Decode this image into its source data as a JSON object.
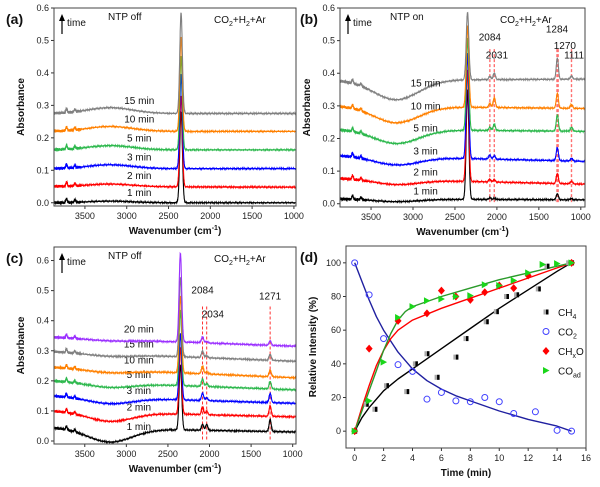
{
  "chart_data": [
    {
      "panel": "(a)",
      "type": "line",
      "condition": "NTP off",
      "gas": [
        "CO",
        "2",
        "+H",
        "2",
        "+Ar"
      ],
      "arrow_label": "time",
      "xlabel": "Wavenumber (cm",
      "xlabel_sup": "-1",
      "xlabel_end": ")",
      "ylabel": "Absorbance",
      "xlim": [
        3870,
        975
      ],
      "ylim": [
        -0.01,
        0.6
      ],
      "xticks": [
        3500,
        3000,
        2500,
        2000,
        1500,
        1000
      ],
      "yticks": [
        0.0,
        0.1,
        0.2,
        0.3,
        0.4,
        0.5,
        0.6
      ],
      "dashed_lines": [],
      "annotations": [],
      "series": [
        {
          "name": "1 min",
          "color": "#000000",
          "baseline_left": 0.0,
          "baseline_right": 0.0,
          "hump": 0.005,
          "peak_2350": 0.28,
          "minor_peaks": []
        },
        {
          "name": "2 min",
          "color": "#ff0000",
          "baseline_left": 0.05,
          "baseline_right": 0.048,
          "hump": 0.008,
          "peak_2350": 0.33,
          "minor_peaks": []
        },
        {
          "name": "3 min",
          "color": "#0000ff",
          "baseline_left": 0.105,
          "baseline_right": 0.105,
          "hump": 0.012,
          "peak_2350": 0.395,
          "minor_peaks": []
        },
        {
          "name": "5 min",
          "color": "#2db84d",
          "baseline_left": 0.163,
          "baseline_right": 0.163,
          "hump": 0.013,
          "peak_2350": 0.45,
          "minor_peaks": []
        },
        {
          "name": "10 min",
          "color": "#ff8000",
          "baseline_left": 0.22,
          "baseline_right": 0.22,
          "hump": 0.015,
          "peak_2350": 0.51,
          "minor_peaks": []
        },
        {
          "name": "15 min",
          "color": "#808080",
          "baseline_left": 0.275,
          "baseline_right": 0.275,
          "hump": 0.018,
          "peak_2350": 0.585,
          "minor_peaks": []
        }
      ]
    },
    {
      "panel": "(b)",
      "type": "line",
      "condition": "NTP on",
      "gas": [
        "CO",
        "2",
        "+H",
        "2",
        "+Ar"
      ],
      "arrow_label": "time",
      "xlabel": "Wavenumber (cm",
      "xlabel_sup": "-1",
      "xlabel_end": ")",
      "ylabel": "Absorbance",
      "xlim": [
        3870,
        950
      ],
      "ylim": [
        -0.01,
        0.6
      ],
      "xticks": [
        3500,
        3000,
        2500,
        2000,
        1500,
        1000
      ],
      "yticks": [
        0.0,
        0.1,
        0.2,
        0.3,
        0.4,
        0.5,
        0.6
      ],
      "dashed_lines": [
        2084,
        2031,
        1284,
        1270,
        1111
      ],
      "annotations": [
        {
          "text": "2084",
          "x": 2084,
          "y": 0.5
        },
        {
          "text": "2031",
          "x": 2000,
          "y": 0.445
        },
        {
          "text": "1284",
          "x": 1284,
          "y": 0.525
        },
        {
          "text": "1270",
          "x": 1190,
          "y": 0.475
        },
        {
          "text": "1111",
          "x": 1080,
          "y": 0.445
        }
      ],
      "series": [
        {
          "name": "1 min",
          "color": "#000000",
          "baseline_left": 0.015,
          "baseline_right": 0.012,
          "hump": -0.008,
          "peak_2350": 0.35,
          "minor_peaks": [
            [
              2084,
              0.005
            ],
            [
              2031,
              0.004
            ],
            [
              1280,
              0.018
            ],
            [
              1111,
              0.004
            ]
          ]
        },
        {
          "name": "2 min",
          "color": "#ff0000",
          "baseline_left": 0.078,
          "baseline_right": 0.06,
          "hump": -0.015,
          "peak_2350": 0.42,
          "minor_peaks": [
            [
              2084,
              0.008
            ],
            [
              2031,
              0.006
            ],
            [
              1280,
              0.03
            ],
            [
              1111,
              0.008
            ]
          ]
        },
        {
          "name": "3 min",
          "color": "#0000ff",
          "baseline_left": 0.148,
          "baseline_right": 0.13,
          "hump": -0.025,
          "peak_2350": 0.47,
          "minor_peaks": [
            [
              2084,
              0.012
            ],
            [
              2031,
              0.01
            ],
            [
              1280,
              0.04
            ],
            [
              1111,
              0.008
            ]
          ]
        },
        {
          "name": "5 min",
          "color": "#2db84d",
          "baseline_left": 0.228,
          "baseline_right": 0.222,
          "hump": -0.042,
          "peak_2350": 0.51,
          "minor_peaks": [
            [
              2084,
              0.01
            ],
            [
              2031,
              0.02
            ],
            [
              1280,
              0.05
            ],
            [
              1111,
              0.012
            ]
          ]
        },
        {
          "name": "10 min",
          "color": "#ff8000",
          "baseline_left": 0.3,
          "baseline_right": 0.292,
          "hump": -0.05,
          "peak_2350": 0.55,
          "minor_peaks": [
            [
              2084,
              0.012
            ],
            [
              2031,
              0.03
            ],
            [
              1280,
              0.045
            ],
            [
              1111,
              0.012
            ]
          ]
        },
        {
          "name": "15 min",
          "color": "#808080",
          "baseline_left": 0.378,
          "baseline_right": 0.382,
          "hump": -0.06,
          "peak_2350": 0.585,
          "minor_peaks": [
            [
              2084,
              0.01
            ],
            [
              2031,
              0.02
            ],
            [
              1280,
              0.065
            ],
            [
              1111,
              0.01
            ]
          ]
        }
      ]
    },
    {
      "panel": "(c)",
      "type": "line",
      "condition": "NTP off",
      "gas": [
        "CO",
        "2",
        "+H",
        "2",
        "+Ar"
      ],
      "arrow_label": "time",
      "xlabel": "Wavenumber (cm",
      "xlabel_sup": "-1",
      "xlabel_end": ")",
      "ylabel": "Absorbance",
      "xlim": [
        3870,
        960
      ],
      "ylim": [
        -0.01,
        0.645
      ],
      "xticks": [
        3500,
        3000,
        2500,
        2000,
        1500,
        1000
      ],
      "yticks": [
        0.0,
        0.1,
        0.2,
        0.3,
        0.4,
        0.5,
        0.6
      ],
      "dashed_lines": [
        2084,
        2034,
        1271
      ],
      "annotations": [
        {
          "text": "2084",
          "x": 2084,
          "y": 0.49
        },
        {
          "text": "2034",
          "x": 1960,
          "y": 0.41
        },
        {
          "text": "1271",
          "x": 1271,
          "y": 0.47
        }
      ],
      "series": [
        {
          "name": "1 min",
          "color": "#000000",
          "baseline_left": 0.045,
          "baseline_right": 0.03,
          "hump": -0.045,
          "peak_2350": 0.26,
          "minor_peaks": [
            [
              2084,
              0.02
            ],
            [
              2034,
              0.02
            ],
            [
              1271,
              0.04
            ]
          ]
        },
        {
          "name": "2 min",
          "color": "#ff0000",
          "baseline_left": 0.1,
          "baseline_right": 0.08,
          "hump": -0.03,
          "peak_2350": 0.32,
          "minor_peaks": [
            [
              2084,
              0.025
            ],
            [
              2034,
              0.012
            ],
            [
              1271,
              0.035
            ]
          ]
        },
        {
          "name": "3 min",
          "color": "#0000ff",
          "baseline_left": 0.15,
          "baseline_right": 0.125,
          "hump": -0.02,
          "peak_2350": 0.37,
          "minor_peaks": [
            [
              2084,
              0.025
            ],
            [
              2034,
              0.01
            ],
            [
              1271,
              0.03
            ]
          ]
        },
        {
          "name": "5 min",
          "color": "#2db84d",
          "baseline_left": 0.2,
          "baseline_right": 0.17,
          "hump": -0.015,
          "peak_2350": 0.45,
          "minor_peaks": [
            [
              2084,
              0.025
            ],
            [
              2034,
              0.01
            ],
            [
              1271,
              0.025
            ]
          ]
        },
        {
          "name": "10 min",
          "color": "#ff8000",
          "baseline_left": 0.245,
          "baseline_right": 0.21,
          "hump": -0.01,
          "peak_2350": 0.5,
          "minor_peaks": [
            [
              2084,
              0.025
            ],
            [
              2034,
              0.008
            ],
            [
              1271,
              0.022
            ]
          ]
        },
        {
          "name": "15 min",
          "color": "#808080",
          "baseline_left": 0.297,
          "baseline_right": 0.265,
          "hump": -0.008,
          "peak_2350": 0.56,
          "minor_peaks": [
            [
              2084,
              0.022
            ],
            [
              2034,
              0.006
            ],
            [
              1271,
              0.02
            ]
          ]
        },
        {
          "name": "20 min",
          "color": "#9b30ff",
          "baseline_left": 0.345,
          "baseline_right": 0.315,
          "hump": -0.005,
          "peak_2350": 0.64,
          "minor_peaks": [
            [
              2084,
              0.02
            ],
            [
              2034,
              0.005
            ],
            [
              1271,
              0.015
            ]
          ]
        }
      ]
    },
    {
      "panel": "(d)",
      "type": "scatter",
      "xlabel": "Time (min)",
      "ylabel": "Relative Intensity (%)",
      "xlim": [
        -0.6,
        16
      ],
      "ylim": [
        -10,
        110
      ],
      "xticks": [
        0,
        2,
        4,
        6,
        8,
        10,
        12,
        14,
        16
      ],
      "yticks": [
        0,
        20,
        40,
        60,
        80,
        100
      ],
      "legend_position": "right",
      "series": [
        {
          "name": "CH4",
          "label": [
            "CH",
            "4",
            ""
          ],
          "marker": "half-square",
          "color": "#000000",
          "fit_color": "#000000",
          "x": [
            0,
            0.8,
            1.4,
            2.2,
            3.6,
            4.2,
            5,
            5.7,
            7,
            7.7,
            9.1,
            9.8,
            10.5,
            11.2,
            12.7,
            13.3,
            14.8,
            15
          ],
          "y": [
            0,
            16,
            13,
            27,
            23.5,
            40,
            46,
            32,
            44,
            55,
            65,
            71,
            80,
            81,
            84.5,
            98,
            100,
            100
          ],
          "fit_x": [
            0,
            0.5,
            1,
            2,
            3,
            4,
            6,
            8,
            10,
            12,
            14,
            15
          ],
          "fit_y": [
            0,
            8,
            14,
            24,
            31,
            37,
            49,
            61,
            73,
            84,
            95,
            100
          ]
        },
        {
          "name": "CO2",
          "label": [
            "CO",
            "2",
            ""
          ],
          "marker": "open-circle",
          "color": "#4040ff",
          "fit_color": "#2020a0",
          "x": [
            0,
            1,
            2,
            3,
            4,
            5,
            6,
            7,
            8,
            9,
            10,
            11,
            12.5,
            14,
            15
          ],
          "y": [
            100,
            81,
            55,
            39.5,
            35.5,
            19,
            23,
            18,
            17.5,
            20,
            17.5,
            10.5,
            11.5,
            0.5,
            0
          ],
          "fit_x": [
            0,
            0.5,
            1,
            1.5,
            2,
            3,
            4,
            5,
            6,
            7,
            8,
            10,
            12,
            14,
            15
          ],
          "fit_y": [
            100,
            89,
            78,
            68,
            60,
            47,
            37,
            30,
            25,
            21,
            18,
            12,
            7,
            3,
            0
          ]
        },
        {
          "name": "CHxO",
          "label": [
            "CH",
            "x",
            "O"
          ],
          "marker": "diamond",
          "color": "#ff0000",
          "fit_color": "#ff0000",
          "x": [
            0,
            1,
            3,
            5,
            6,
            7,
            8,
            9,
            10,
            11,
            12,
            15
          ],
          "y": [
            0,
            49,
            65.5,
            70,
            83.5,
            80,
            78,
            82.5,
            86.5,
            85,
            92.5,
            100
          ],
          "fit_x": [
            0,
            0.5,
            1,
            1.5,
            2,
            2.5,
            3,
            4,
            6,
            8,
            10,
            12,
            14,
            15
          ],
          "fit_y": [
            0,
            14,
            27,
            39,
            48,
            55,
            60,
            66,
            73,
            79,
            85,
            91,
            97,
            100
          ]
        },
        {
          "name": "COad",
          "label": [
            "CO",
            "ad",
            ""
          ],
          "marker": "right-triangle",
          "color": "#1ad61a",
          "fit_color": "#2a9a2a",
          "x": [
            0,
            1,
            2,
            3,
            4,
            5,
            6,
            7,
            8,
            9,
            10,
            11,
            12,
            13,
            14,
            15
          ],
          "y": [
            0,
            18,
            41,
            67.5,
            74,
            77.5,
            78.5,
            80,
            80.5,
            87,
            86.5,
            89.5,
            94,
            99,
            99.5,
            100
          ],
          "fit_x": [
            0,
            0.5,
            1,
            1.5,
            2,
            2.5,
            3,
            3.5,
            4,
            6,
            8,
            10,
            12,
            14,
            15
          ],
          "fit_y": [
            0,
            12,
            24,
            36,
            48,
            58,
            66,
            71,
            74,
            80,
            85,
            90,
            94,
            98,
            100
          ]
        }
      ]
    }
  ]
}
